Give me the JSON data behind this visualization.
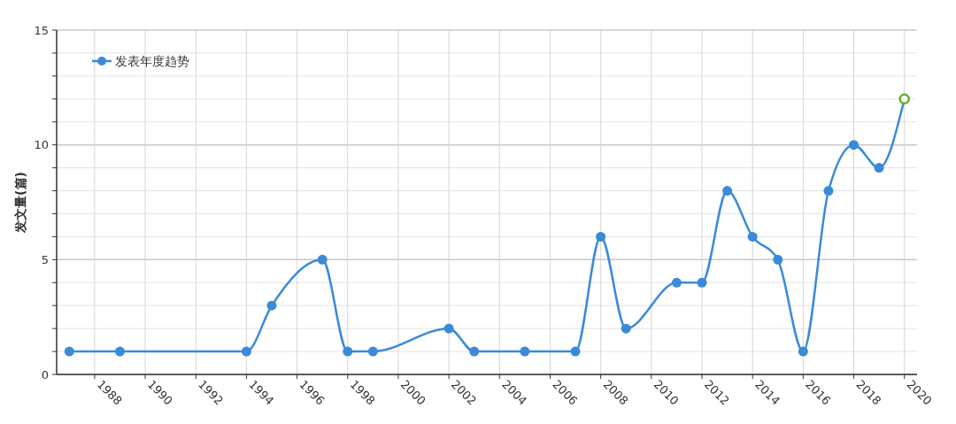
{
  "chart_data": {
    "type": "line",
    "ylabel": "发文量(篇)",
    "x": [
      1987,
      1989,
      1994,
      1995,
      1997,
      1998,
      1999,
      2002,
      2003,
      2005,
      2007,
      2008,
      2009,
      2011,
      2012,
      2013,
      2014,
      2015,
      2016,
      2017,
      2018,
      2019,
      2020
    ],
    "series": [
      {
        "name": "发表年度趋势",
        "color": "#3a8ad8",
        "colors": [
          "#3a8ad8",
          "#3a8ad8",
          "#3a8ad8",
          "#3a8ad8",
          "#3a8ad8",
          "#3a8ad8",
          "#3a8ad8",
          "#3a8ad8",
          "#3a8ad8",
          "#3a8ad8",
          "#3a8ad8",
          "#3a8ad8",
          "#3a8ad8",
          "#3a8ad8",
          "#3a8ad8",
          "#3a8ad8",
          "#3a8ad8",
          "#3a8ad8",
          "#3a8ad8",
          "#3a8ad8",
          "#3a8ad8",
          "#3a8ad8",
          "#6aaa2a"
        ],
        "values": [
          1,
          1,
          1,
          3,
          5,
          1,
          1,
          2,
          1,
          1,
          1,
          6,
          2,
          4,
          4,
          8,
          6,
          5,
          1,
          8,
          10,
          9,
          12
        ]
      }
    ],
    "xlim": [
      1986.5,
      2020.5
    ],
    "xticks": [
      1988,
      1990,
      1992,
      1994,
      1996,
      1998,
      2000,
      2002,
      2004,
      2006,
      2008,
      2010,
      2012,
      2014,
      2016,
      2018,
      2020
    ],
    "ylim": [
      0,
      15
    ],
    "yticks": [
      0,
      {
        "value": 1,
        "label": null
      },
      {
        "value": 2,
        "label": null
      },
      {
        "value": 3,
        "label": null
      },
      {
        "value": 4,
        "label": null
      },
      5,
      {
        "value": 6,
        "label": null
      },
      {
        "value": 7,
        "label": null
      },
      {
        "value": 8,
        "label": null
      },
      {
        "value": 9,
        "label": null
      },
      10,
      {
        "value": 11,
        "label": null
      },
      {
        "value": 12,
        "label": null
      },
      {
        "value": 13,
        "label": null
      },
      {
        "value": 14,
        "label": null
      },
      15
    ],
    "grid": true,
    "legend": "top left",
    "marker": "circle",
    "line_style": "solid"
  }
}
